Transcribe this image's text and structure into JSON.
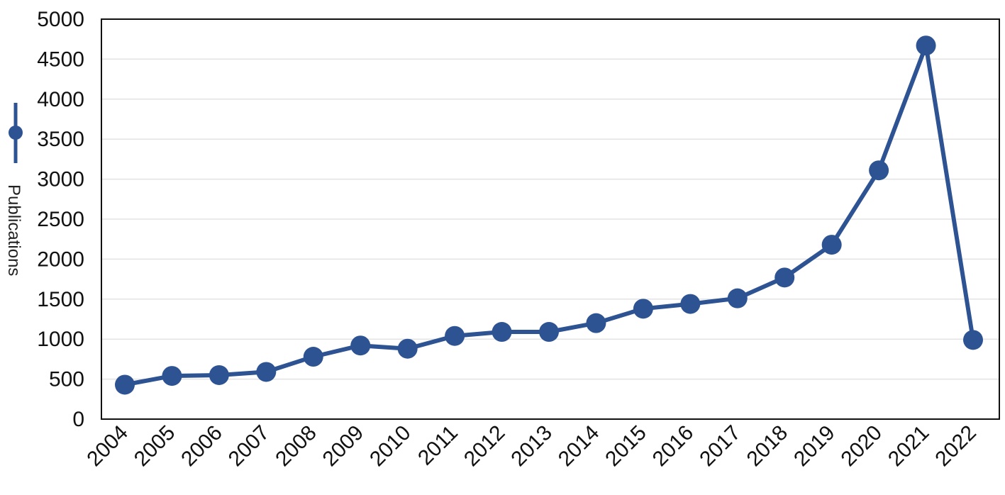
{
  "chart_data": {
    "type": "line",
    "title": "",
    "xlabel": "",
    "ylabel": "Publications",
    "ylim": [
      0,
      5000
    ],
    "yticks": [
      "0",
      "500",
      "1000",
      "1500",
      "2000",
      "2500",
      "3000",
      "3500",
      "4000",
      "4500",
      "5000"
    ],
    "grid": "horizontal",
    "legend": "left (marker beside axis label)",
    "categories": [
      "2004",
      "2005",
      "2006",
      "2007",
      "2008",
      "2009",
      "2010",
      "2011",
      "2012",
      "2013",
      "2014",
      "2015",
      "2016",
      "2017",
      "2018",
      "2019",
      "2020",
      "2021",
      "2022"
    ],
    "series": [
      {
        "name": "Publications",
        "color": "#2e5393",
        "values": [
          430,
          540,
          550,
          590,
          780,
          920,
          880,
          1040,
          1090,
          1090,
          1200,
          1380,
          1440,
          1510,
          1770,
          2180,
          3110,
          4670,
          990
        ]
      }
    ]
  }
}
